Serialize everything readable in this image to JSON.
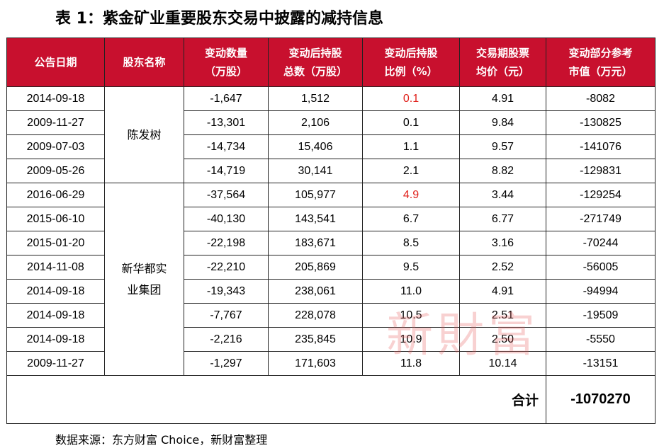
{
  "title": "表 1：紫金矿业重要股东交易中披露的减持信息",
  "headers": [
    [
      "公告日期"
    ],
    [
      "股东名称"
    ],
    [
      "变动数量",
      "（万股）"
    ],
    [
      "变动后持股",
      "总数（万股）"
    ],
    [
      "变动后持股",
      "比例（%）"
    ],
    [
      "交易期股票",
      "均价（元）"
    ],
    [
      "变动部分参考",
      "市值（万元）"
    ]
  ],
  "groups": [
    {
      "name_lines": [
        "陈发树"
      ],
      "rows": [
        {
          "date": "2014-09-18",
          "change": "-1,647",
          "total": "1,512",
          "ratio": "0.1",
          "price": "4.91",
          "value": "-8082",
          "highlight": true
        },
        {
          "date": "2009-11-27",
          "change": "-13,301",
          "total": "2,106",
          "ratio": "0.1",
          "price": "9.84",
          "value": "-130825",
          "highlight": false
        },
        {
          "date": "2009-07-03",
          "change": "-14,734",
          "total": "15,406",
          "ratio": "1.1",
          "price": "9.57",
          "value": "-141076",
          "highlight": false
        },
        {
          "date": "2009-05-26",
          "change": "-14,719",
          "total": "30,141",
          "ratio": "2.1",
          "price": "8.82",
          "value": "-129831",
          "highlight": false
        }
      ]
    },
    {
      "name_lines": [
        "新华都实",
        "业集团"
      ],
      "rows": [
        {
          "date": "2016-06-29",
          "change": "-37,564",
          "total": "105,977",
          "ratio": "4.9",
          "price": "3.44",
          "value": "-129254",
          "highlight": true
        },
        {
          "date": "2015-06-10",
          "change": "-40,130",
          "total": "143,541",
          "ratio": "6.7",
          "price": "6.77",
          "value": "-271749",
          "highlight": false
        },
        {
          "date": "2015-01-20",
          "change": "-22,198",
          "total": "183,671",
          "ratio": "8.5",
          "price": "3.16",
          "value": "-70244",
          "highlight": false
        },
        {
          "date": "2014-11-08",
          "change": "-22,210",
          "total": "205,869",
          "ratio": "9.5",
          "price": "2.52",
          "value": "-56005",
          "highlight": false
        },
        {
          "date": "2014-09-18",
          "change": "-19,343",
          "total": "238,061",
          "ratio": "11.0",
          "price": "4.91",
          "value": "-94994",
          "highlight": false
        },
        {
          "date": "2014-09-18",
          "change": "-7,767",
          "total": "228,078",
          "ratio": "10.5",
          "price": "2.51",
          "value": "-19509",
          "highlight": false
        },
        {
          "date": "2014-09-18",
          "change": "-2,216",
          "total": "235,845",
          "ratio": "10.9",
          "price": "2.50",
          "value": "-5550",
          "highlight": false
        },
        {
          "date": "2009-11-27",
          "change": "-1,297",
          "total": "171,603",
          "ratio": "11.8",
          "price": "10.14",
          "value": "-13151",
          "highlight": false
        }
      ]
    }
  ],
  "total_label": "合计",
  "total_value": "-1070270",
  "source": "数据来源：东方财富 Choice，新财富整理",
  "watermark": "新財富",
  "colors": {
    "header_bg": "#c8102e",
    "highlight_text": "#e0201b"
  }
}
